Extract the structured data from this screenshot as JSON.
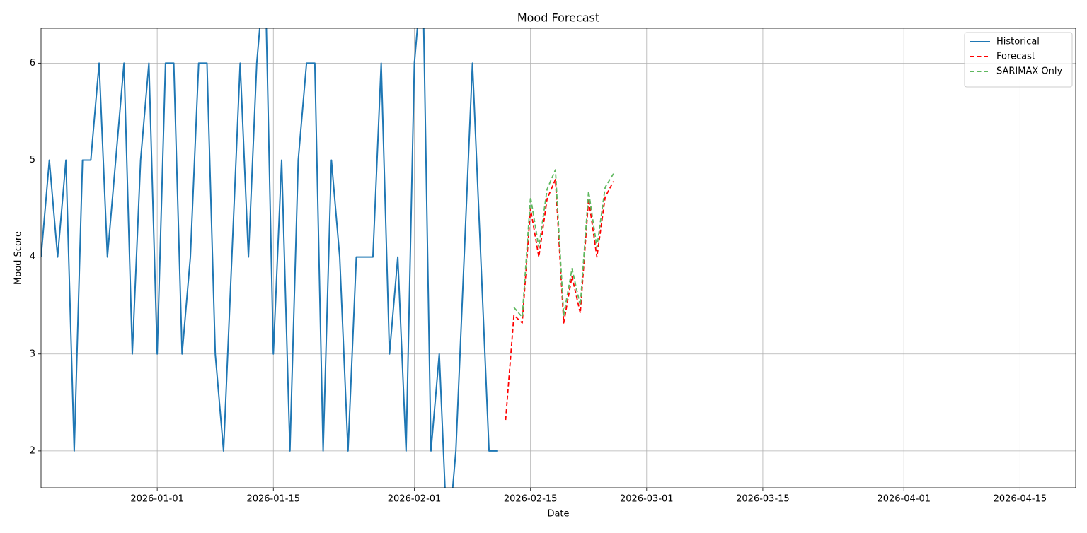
{
  "chart_data": {
    "type": "line",
    "title": "Mood Forecast",
    "xlabel": "Date",
    "ylabel": "Mood Score",
    "xlim": [
      "2025-12-18T00:00",
      "2026-04-21T17:00"
    ],
    "xticks": [
      "2026-01-01",
      "2026-01-15",
      "2026-02-01",
      "2026-02-15",
      "2026-03-01",
      "2026-03-15",
      "2026-04-01",
      "2026-04-15"
    ],
    "ylim": [
      1.62,
      6.36
    ],
    "yticks": [
      2,
      3,
      4,
      5,
      6
    ],
    "grid": true,
    "legend": "upper right",
    "series": [
      {
        "name": "Historical",
        "color": "#1f77b4",
        "dash": false,
        "x": [
          "2025-12-18",
          "2025-12-19",
          "2025-12-20",
          "2025-12-21",
          "2025-12-22",
          "2025-12-23",
          "2025-12-24",
          "2025-12-25",
          "2025-12-26",
          "2025-12-27",
          "2025-12-28",
          "2025-12-29",
          "2025-12-30",
          "2025-12-31",
          "2026-01-01",
          "2026-01-02",
          "2026-01-03",
          "2026-01-04",
          "2026-01-05",
          "2026-01-06",
          "2026-01-07",
          "2026-01-08",
          "2026-01-09",
          "2026-01-10",
          "2026-01-11",
          "2026-01-12",
          "2026-01-13",
          "2026-01-14",
          "2026-01-15",
          "2026-01-16",
          "2026-01-17",
          "2026-01-18",
          "2026-01-19",
          "2026-01-20",
          "2026-01-21",
          "2026-01-22",
          "2026-01-23",
          "2026-01-24",
          "2026-01-25",
          "2026-01-26",
          "2026-01-27",
          "2026-01-28",
          "2026-01-29",
          "2026-01-30",
          "2026-01-31",
          "2026-02-01",
          "2026-02-02",
          "2026-02-03",
          "2026-02-04",
          "2026-02-05",
          "2026-02-06",
          "2026-02-07",
          "2026-02-08",
          "2026-02-09",
          "2026-02-10",
          "2026-02-11"
        ],
        "values": [
          4,
          5,
          4,
          5,
          2,
          5,
          5,
          6,
          4,
          5,
          6,
          3,
          5,
          6,
          3,
          6,
          6,
          3,
          4,
          6,
          6,
          3,
          2,
          4,
          6,
          4,
          6,
          7,
          3,
          5,
          2,
          5,
          6,
          6,
          2,
          5,
          4,
          2,
          4,
          4,
          4,
          6,
          3,
          4,
          2,
          6,
          7,
          2,
          3,
          1,
          2,
          4,
          6,
          4,
          2,
          2
        ]
      },
      {
        "name": "Forecast",
        "color": "#ff0000",
        "dash": true,
        "x": [
          "2026-02-12",
          "2026-02-13",
          "2026-02-14",
          "2026-02-15",
          "2026-02-16",
          "2026-02-17",
          "2026-02-18",
          "2026-02-19",
          "2026-02-20",
          "2026-02-21",
          "2026-02-22",
          "2026-02-23",
          "2026-02-24",
          "2026-02-25"
        ],
        "values": [
          2.32,
          3.4,
          3.32,
          4.5,
          4.0,
          4.6,
          4.8,
          3.32,
          3.8,
          3.42,
          4.6,
          4.0,
          4.62,
          4.78
        ]
      },
      {
        "name": "SARIMAX Only",
        "color": "#5fb85f",
        "dash": true,
        "x": [
          "2026-02-13",
          "2026-02-14",
          "2026-02-15",
          "2026-02-16",
          "2026-02-17",
          "2026-02-18",
          "2026-02-19",
          "2026-02-20",
          "2026-02-21",
          "2026-02-22",
          "2026-02-23",
          "2026-02-24",
          "2026-02-25"
        ],
        "values": [
          3.48,
          3.38,
          4.62,
          4.1,
          4.7,
          4.9,
          3.4,
          3.88,
          3.5,
          4.68,
          4.1,
          4.72,
          4.86
        ]
      }
    ]
  }
}
